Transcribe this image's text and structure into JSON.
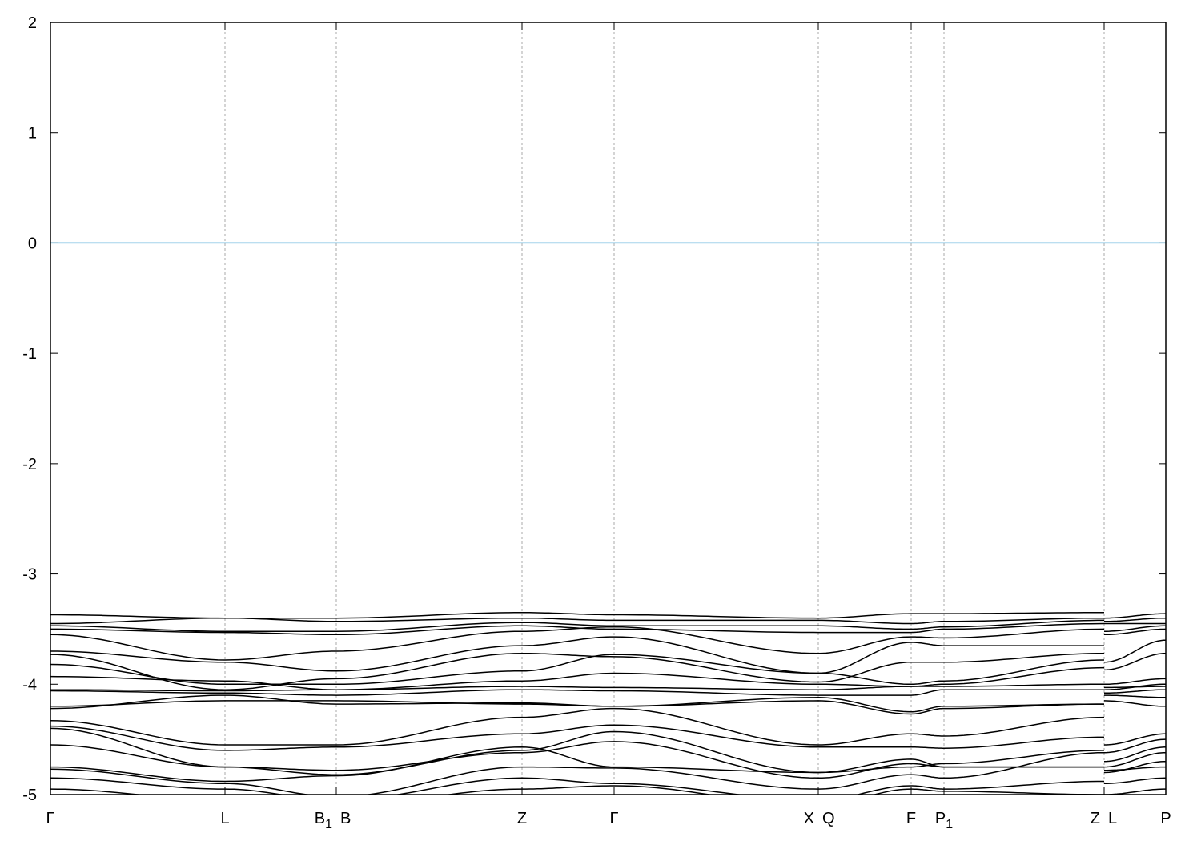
{
  "chart_data": {
    "type": "line",
    "title": "",
    "xlabel": "",
    "ylabel": "",
    "ylim": [
      -5,
      2
    ],
    "yticks": [
      -5,
      -4,
      -3,
      -2,
      -1,
      0,
      1,
      2
    ],
    "xlim": [
      0,
      13.93
    ],
    "grid": "vertical dashed lines at high-symmetry points",
    "fermi_level": {
      "value": 0,
      "color": "#4aa8d8"
    },
    "band_color": "#000000",
    "kpoints": [
      {
        "label": "Γ",
        "sub": "",
        "x": 0,
        "side": "center"
      },
      {
        "label": "L",
        "sub": "",
        "x": 2.18,
        "side": "center"
      },
      {
        "label": "B",
        "sub": "1",
        "x": 3.57,
        "side": "left"
      },
      {
        "label": "B",
        "sub": "",
        "x": 3.57,
        "side": "right"
      },
      {
        "label": "Z",
        "sub": "",
        "x": 5.89,
        "side": "center"
      },
      {
        "label": "Γ",
        "sub": "",
        "x": 7.04,
        "side": "center"
      },
      {
        "label": "X",
        "sub": "",
        "x": 9.59,
        "side": "left"
      },
      {
        "label": "Q",
        "sub": "",
        "x": 9.59,
        "side": "right"
      },
      {
        "label": "F",
        "sub": "",
        "x": 10.75,
        "side": "center"
      },
      {
        "label": "P",
        "sub": "1",
        "x": 11.16,
        "side": "center"
      },
      {
        "label": "Z",
        "sub": "",
        "x": 13.16,
        "side": "left"
      },
      {
        "label": "L",
        "sub": "",
        "x": 13.16,
        "side": "right"
      },
      {
        "label": "P",
        "sub": "",
        "x": 13.93,
        "side": "center"
      }
    ],
    "band_nodes_x": [
      0,
      2.18,
      3.57,
      5.89,
      7.04,
      9.59,
      10.75,
      11.16,
      13.16,
      13.16,
      13.93
    ],
    "bands": [
      [
        -3.37,
        -3.4,
        -3.4,
        -3.35,
        -3.37,
        -3.4,
        -3.36,
        -3.36,
        -3.35,
        -3.4,
        -3.36
      ],
      [
        -3.45,
        -3.4,
        -3.43,
        -3.4,
        -3.42,
        -3.42,
        -3.45,
        -3.43,
        -3.4,
        -3.43,
        -3.4
      ],
      [
        -3.47,
        -3.52,
        -3.52,
        -3.44,
        -3.47,
        -3.47,
        -3.5,
        -3.48,
        -3.42,
        -3.45,
        -3.45
      ],
      [
        -3.5,
        -3.53,
        -3.55,
        -3.47,
        -3.5,
        -3.53,
        -3.53,
        -3.5,
        -3.45,
        -3.52,
        -3.47
      ],
      [
        -3.55,
        -3.78,
        -3.7,
        -3.52,
        -3.48,
        -3.72,
        -3.57,
        -3.58,
        -3.5,
        -3.55,
        -3.5
      ],
      [
        -3.7,
        -3.8,
        -3.88,
        -3.65,
        -3.57,
        -3.9,
        -3.62,
        -3.65,
        -3.65,
        -3.8,
        -3.6
      ],
      [
        -3.73,
        -4.05,
        -3.95,
        -3.72,
        -3.75,
        -3.98,
        -3.8,
        -3.8,
        -3.72,
        -3.87,
        -3.72
      ],
      [
        -3.82,
        -4.0,
        -4.0,
        -3.88,
        -3.73,
        -3.9,
        -4.0,
        -3.97,
        -3.78,
        -4.0,
        -3.95
      ],
      [
        -3.93,
        -3.97,
        -4.05,
        -3.97,
        -3.9,
        -4.0,
        -4.02,
        -4.0,
        -3.85,
        -4.05,
        -4.0
      ],
      [
        -4.05,
        -4.06,
        -4.05,
        -4.02,
        -4.03,
        -4.05,
        -4.02,
        -4.02,
        -4.0,
        -4.03,
        -4.02
      ],
      [
        -4.06,
        -4.08,
        -4.1,
        -4.05,
        -4.06,
        -4.1,
        -4.1,
        -4.05,
        -4.05,
        -4.08,
        -4.05
      ],
      [
        -4.2,
        -4.15,
        -4.15,
        -4.18,
        -4.2,
        -4.12,
        -4.25,
        -4.2,
        -4.18,
        -4.1,
        -4.12
      ],
      [
        -4.22,
        -4.1,
        -4.18,
        -4.17,
        -4.2,
        -4.15,
        -4.27,
        -4.22,
        -4.18,
        -4.15,
        -4.2
      ],
      [
        -4.33,
        -4.55,
        -4.55,
        -4.3,
        -4.22,
        -4.55,
        -4.45,
        -4.47,
        -4.3,
        -4.55,
        -4.45
      ],
      [
        -4.38,
        -4.6,
        -4.57,
        -4.45,
        -4.37,
        -4.57,
        -4.57,
        -4.58,
        -4.48,
        -4.62,
        -4.5
      ],
      [
        -4.4,
        -4.75,
        -4.82,
        -4.6,
        -4.43,
        -4.8,
        -4.75,
        -4.72,
        -4.6,
        -4.7,
        -4.57
      ],
      [
        -4.55,
        -4.75,
        -4.78,
        -4.62,
        -4.52,
        -4.85,
        -4.72,
        -4.75,
        -4.75,
        -4.75,
        -4.62
      ],
      [
        -4.75,
        -4.88,
        -4.83,
        -4.57,
        -4.75,
        -4.8,
        -4.68,
        -4.75,
        -4.75,
        -4.78,
        -4.75
      ],
      [
        -4.77,
        -4.9,
        -5.02,
        -4.75,
        -4.76,
        -4.95,
        -4.82,
        -4.85,
        -4.62,
        -4.8,
        -4.7
      ],
      [
        -4.85,
        -4.95,
        -5.05,
        -4.85,
        -4.9,
        -5.05,
        -4.92,
        -4.95,
        -4.88,
        -4.9,
        -4.85
      ],
      [
        -4.95,
        -5.05,
        -5.1,
        -4.95,
        -4.92,
        -5.1,
        -4.95,
        -4.97,
        -5.0,
        -5.0,
        -4.95
      ]
    ]
  }
}
